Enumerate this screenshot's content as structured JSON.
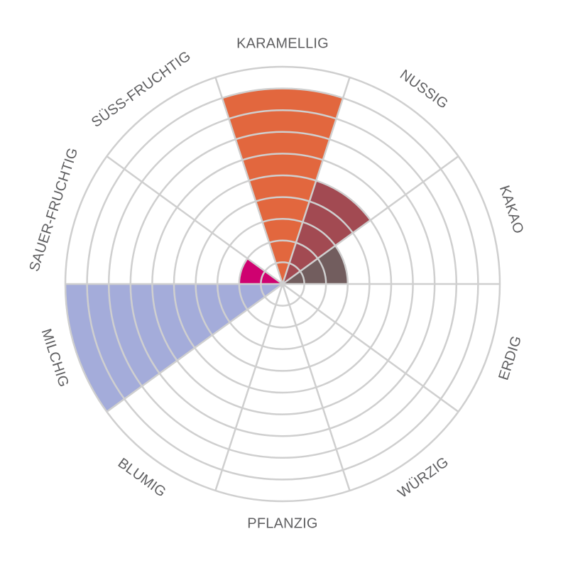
{
  "chart_data": {
    "type": "polar-area",
    "title": "",
    "categories": [
      "KARAMELLIG",
      "NUSSIG",
      "KAKAO",
      "ERDIG",
      "WÜRZIG",
      "PFLANZIG",
      "BLUMIG",
      "MILCHIG",
      "SAUER-FRUCHTIG",
      "SÜSS-FRUCHTIG"
    ],
    "values": [
      9,
      5,
      3,
      0,
      0,
      0,
      0,
      10,
      2,
      0
    ],
    "colors": [
      "#e2673e",
      "#a24a52",
      "#725d5e",
      "#cfcfcf",
      "#cfcfcf",
      "#cfcfcf",
      "#cfcfcf",
      "#a4acda",
      "#cf0170",
      "#cfcfcf"
    ],
    "rmax": 10,
    "rings": 10,
    "grid_color": "#cfcfcf",
    "label_color": "#5f5f61"
  }
}
